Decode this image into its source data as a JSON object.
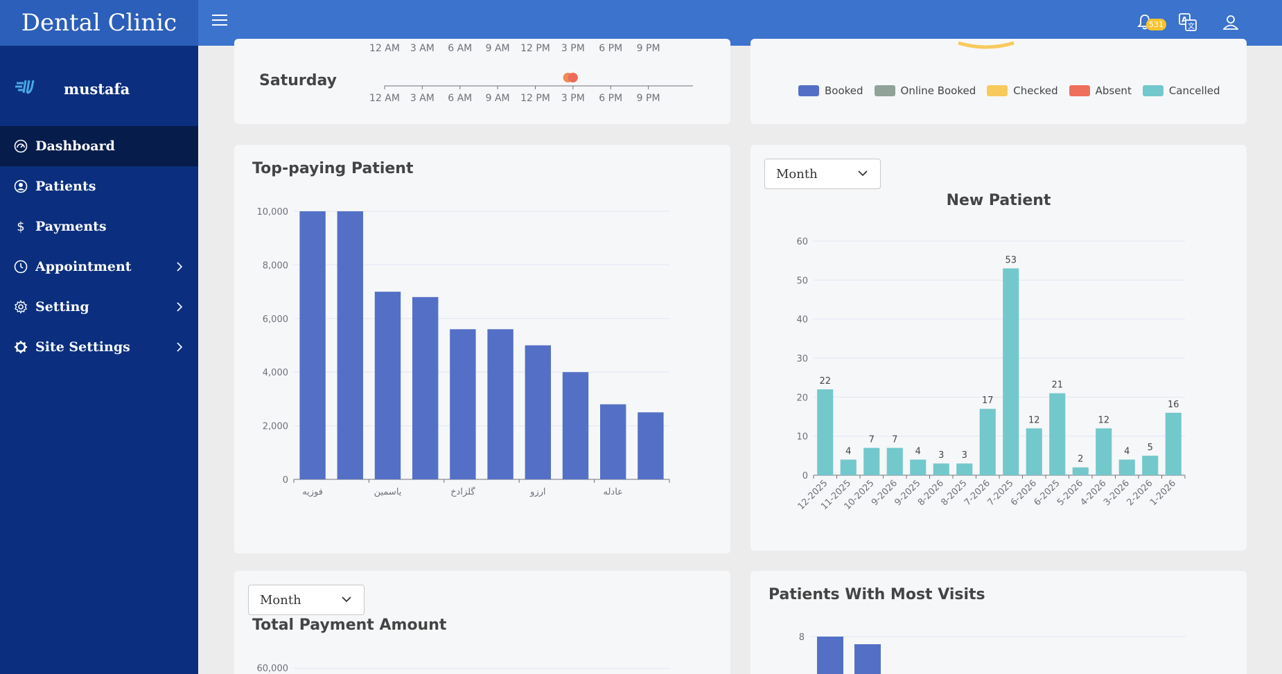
{
  "app": {
    "title": "Dental Clinic"
  },
  "header": {
    "notification_count": "531"
  },
  "sidebar": {
    "user_name": "mustafa",
    "items": [
      {
        "label": "Dashboard",
        "icon": "dashboard-icon",
        "active": true
      },
      {
        "label": "Patients",
        "icon": "user-circle-icon"
      },
      {
        "label": "Payments",
        "icon": "dollar-icon"
      },
      {
        "label": "Appointment",
        "icon": "clock-icon",
        "has_submenu": true
      },
      {
        "label": "Setting",
        "icon": "gear-icon",
        "has_submenu": true
      },
      {
        "label": "Site Settings",
        "icon": "settings-ring-icon",
        "has_submenu": true
      }
    ]
  },
  "schedule": {
    "day_label": "Saturday",
    "time_ticks": [
      "12 AM",
      "3 AM",
      "6 AM",
      "9 AM",
      "12 PM",
      "3 PM",
      "6 PM",
      "9 PM"
    ],
    "appointments": [
      {
        "hour": 14.6,
        "color": "#ee8c55"
      },
      {
        "hour": 15.0,
        "color": "#ee6a5a"
      }
    ]
  },
  "status_legend": [
    {
      "label": "Booked",
      "color": "#5470c6"
    },
    {
      "label": "Online Booked",
      "color": "#91a298"
    },
    {
      "label": "Checked",
      "color": "#f8ca5d"
    },
    {
      "label": "Absent",
      "color": "#ee6f5c"
    },
    {
      "label": "Cancelled",
      "color": "#73c8cc"
    }
  ],
  "top_paying": {
    "title": "Top-paying Patient",
    "chart_data": {
      "type": "bar",
      "categories": [
        "فوزيه",
        "",
        "ياسمين",
        "",
        "گلزادخ",
        "",
        "ارزو",
        "",
        "عادله",
        ""
      ],
      "values": [
        10000,
        10000,
        7000,
        6800,
        5600,
        5600,
        5000,
        4000,
        2800,
        2500
      ],
      "y_ticks": [
        "0",
        "2,000",
        "4,000",
        "6,000",
        "8,000",
        "10,000"
      ],
      "ylim": [
        0,
        10000
      ],
      "color": "#5470c6"
    }
  },
  "new_patient": {
    "select_value": "Month",
    "title": "New Patient",
    "chart_data": {
      "type": "bar",
      "categories": [
        "12-2025",
        "11-2025",
        "10-2025",
        "9-2026",
        "9-2025",
        "8-2026",
        "8-2025",
        "7-2026",
        "7-2025",
        "6-2026",
        "6-2025",
        "5-2026",
        "4-2026",
        "3-2026",
        "2-2026",
        "1-2026"
      ],
      "values": [
        22,
        4,
        7,
        7,
        4,
        3,
        3,
        17,
        53,
        12,
        21,
        2,
        12,
        4,
        5,
        16
      ],
      "y_ticks": [
        "0",
        "10",
        "20",
        "30",
        "40",
        "50",
        "60"
      ],
      "ylim": [
        0,
        60
      ],
      "color": "#73c8cc"
    }
  },
  "total_payment": {
    "select_value": "Month",
    "title": "Total Payment Amount",
    "y_top_tick": "60,000"
  },
  "most_visits": {
    "title": "Patients With Most Visits",
    "chart_data": {
      "type": "bar",
      "visible_y_tick": "8",
      "ylim_top": 8,
      "values": [
        8,
        7.9
      ],
      "color": "#5470c6"
    }
  }
}
